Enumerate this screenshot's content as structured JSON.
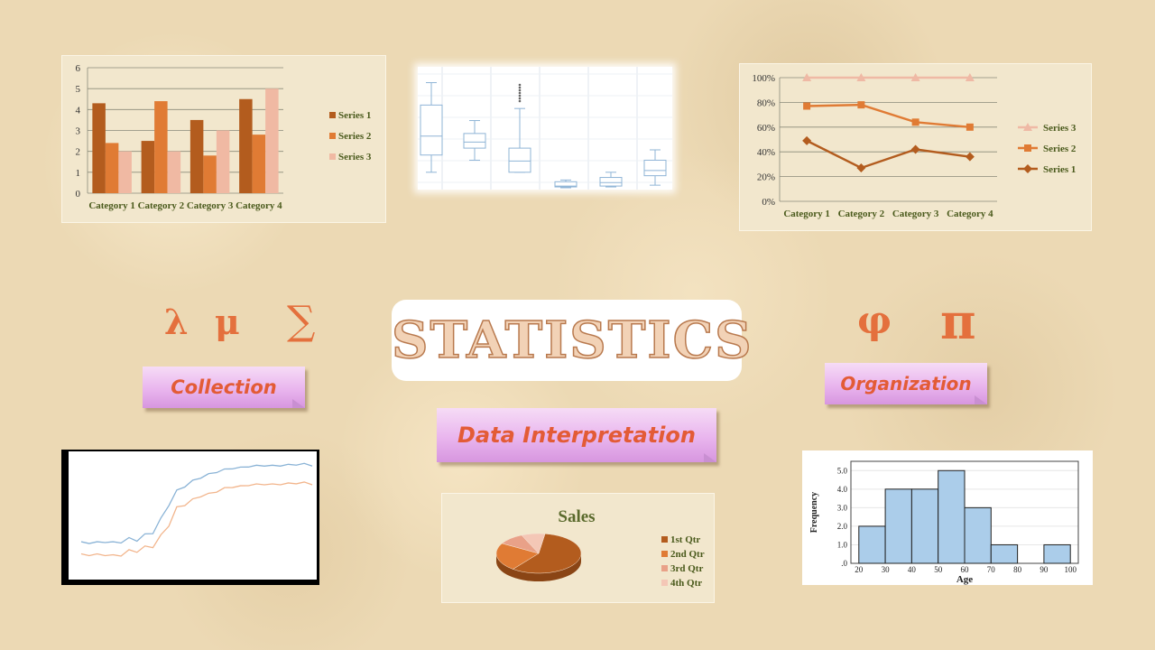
{
  "title": "STATISTICS",
  "symbols": {
    "lambda": "λ",
    "mu": "μ",
    "sigma": "∑",
    "phi": "φ",
    "pi": "π"
  },
  "labels": {
    "collection": "Collection",
    "organization": "Organization",
    "interpretation": "Data Interpretation"
  },
  "colors": {
    "accent": "#e4703d",
    "dark": "#b35c1e",
    "mid": "#e07b34",
    "light": "#f0b9a3",
    "olive": "#5a6a2c"
  },
  "chart_data": [
    {
      "type": "bar",
      "categories": [
        "Category 1",
        "Category 2",
        "Category 3",
        "Category 4"
      ],
      "series": [
        {
          "name": "Series 1",
          "values": [
            4.3,
            2.5,
            3.5,
            4.5
          ],
          "color": "#b35c1e"
        },
        {
          "name": "Series 2",
          "values": [
            2.4,
            4.4,
            1.8,
            2.8
          ],
          "color": "#e07b34"
        },
        {
          "name": "Series 3",
          "values": [
            2.0,
            2.0,
            3.0,
            5.0
          ],
          "color": "#f0b9a3"
        }
      ],
      "yticks": [
        "0",
        "1",
        "2",
        "3",
        "4",
        "5",
        "6"
      ],
      "ylim": [
        0,
        6
      ],
      "legend": "right"
    },
    {
      "type": "box",
      "boxes": [
        {
          "min": 0.9,
          "q1": 1.9,
          "median": 3.0,
          "q3": 4.8,
          "max": 6.1
        },
        {
          "min": 1.6,
          "q1": 2.3,
          "median": 2.65,
          "q3": 3.15,
          "max": 3.9
        },
        {
          "min": 0.9,
          "q1": 0.9,
          "median": 1.55,
          "q3": 2.3,
          "max": 4.6
        },
        {
          "min": 0.0,
          "q1": 0.05,
          "median": 0.1,
          "q3": 0.35,
          "max": 0.45
        },
        {
          "min": 0.05,
          "q1": 0.1,
          "median": 0.3,
          "q3": 0.6,
          "max": 0.9
        },
        {
          "min": 0.15,
          "q1": 0.7,
          "median": 1.0,
          "q3": 1.6,
          "max": 2.2
        }
      ],
      "ylim": [
        0,
        6.6
      ]
    },
    {
      "type": "line",
      "categories": [
        "Category 1",
        "Category 2",
        "Category 3",
        "Category 4"
      ],
      "series": [
        {
          "name": "Series 3",
          "values": [
            100,
            100,
            100,
            100
          ],
          "color": "#efb9a5",
          "marker": "triangle"
        },
        {
          "name": "Series 2",
          "values": [
            77,
            78,
            64,
            60
          ],
          "color": "#e07b34",
          "marker": "square"
        },
        {
          "name": "Series 1",
          "values": [
            49,
            27,
            42,
            36
          ],
          "color": "#b35c1e",
          "marker": "diamond"
        }
      ],
      "yticks": [
        "0%",
        "20%",
        "40%",
        "60%",
        "80%",
        "100%"
      ],
      "ylim": [
        0,
        100
      ],
      "legend": "right"
    },
    {
      "type": "line",
      "series": [
        {
          "values": [
            0.08,
            0.08,
            0.08,
            0.09,
            0.08,
            0.1,
            0.11,
            0.12,
            0.15,
            0.2,
            0.32,
            0.5,
            0.62,
            0.7,
            0.74,
            0.78,
            0.81,
            0.84,
            0.86,
            0.88,
            0.88,
            0.9,
            0.9,
            0.91,
            0.9,
            0.91,
            0.91,
            0.92,
            0.92,
            0.91
          ],
          "color": "#8ab3d6"
        },
        {
          "values": [
            -0.05,
            -0.05,
            -0.05,
            -0.05,
            -0.06,
            -0.04,
            -0.02,
            0.0,
            0.02,
            0.05,
            0.14,
            0.28,
            0.44,
            0.5,
            0.54,
            0.58,
            0.6,
            0.63,
            0.66,
            0.68,
            0.68,
            0.7,
            0.7,
            0.71,
            0.7,
            0.71,
            0.71,
            0.72,
            0.72,
            0.71
          ],
          "color": "#f2b58c"
        }
      ],
      "ylim": [
        -0.2,
        1.0
      ]
    },
    {
      "type": "pie",
      "title": "Sales",
      "labels": [
        "1st Qtr",
        "2nd Qtr",
        "3rd Qtr",
        "4th Qtr"
      ],
      "values": [
        58,
        23,
        10,
        9
      ],
      "colors": [
        "#b35c1e",
        "#e07b34",
        "#e9a188",
        "#f4c7b6"
      ],
      "legend": "right"
    },
    {
      "type": "histogram",
      "bins": [
        20,
        30,
        40,
        50,
        60,
        70,
        80,
        90,
        100
      ],
      "values": [
        2,
        4,
        4,
        5,
        3,
        1,
        0,
        1
      ],
      "xticks": [
        "20",
        "30",
        "40",
        "50",
        "60",
        "70",
        "80",
        "90",
        "100"
      ],
      "yticks": [
        ".0",
        "1.0",
        "2.0",
        "3.0",
        "4.0",
        "5.0"
      ],
      "ylim": [
        0,
        5.5
      ],
      "xlabel": "Age",
      "ylabel": "Frequency"
    }
  ]
}
